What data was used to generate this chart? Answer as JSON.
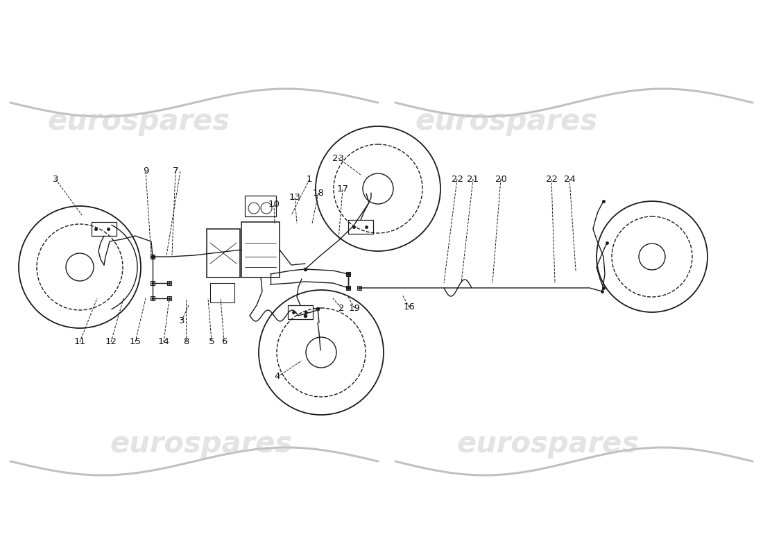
{
  "background_color": "#ffffff",
  "watermark_text": "eurospares",
  "watermark_color": "#cccccc",
  "line_color": "#1a1a1a",
  "label_color": "#111111",
  "label_fontsize": 9.5,
  "wave_color": "#c0c0c0",
  "top_labels": [
    [
      "3",
      80,
      258
    ],
    [
      "9",
      210,
      247
    ],
    [
      "7",
      253,
      247
    ],
    [
      "1",
      446,
      259
    ],
    [
      "10",
      395,
      295
    ],
    [
      "13",
      425,
      285
    ],
    [
      "18",
      459,
      278
    ],
    [
      "17",
      494,
      273
    ],
    [
      "23",
      488,
      228
    ],
    [
      "22",
      659,
      258
    ],
    [
      "21",
      682,
      258
    ],
    [
      "20",
      722,
      258
    ],
    [
      "22",
      795,
      258
    ],
    [
      "24",
      821,
      258
    ]
  ],
  "bottom_labels": [
    [
      "11",
      115,
      493
    ],
    [
      "12",
      160,
      493
    ],
    [
      "15",
      195,
      493
    ],
    [
      "14",
      236,
      493
    ],
    [
      "8",
      268,
      492
    ],
    [
      "5",
      305,
      492
    ],
    [
      "6",
      323,
      492
    ],
    [
      "3",
      262,
      462
    ],
    [
      "2",
      492,
      444
    ],
    [
      "19",
      511,
      444
    ],
    [
      "16",
      590,
      443
    ],
    [
      "4",
      400,
      543
    ]
  ]
}
